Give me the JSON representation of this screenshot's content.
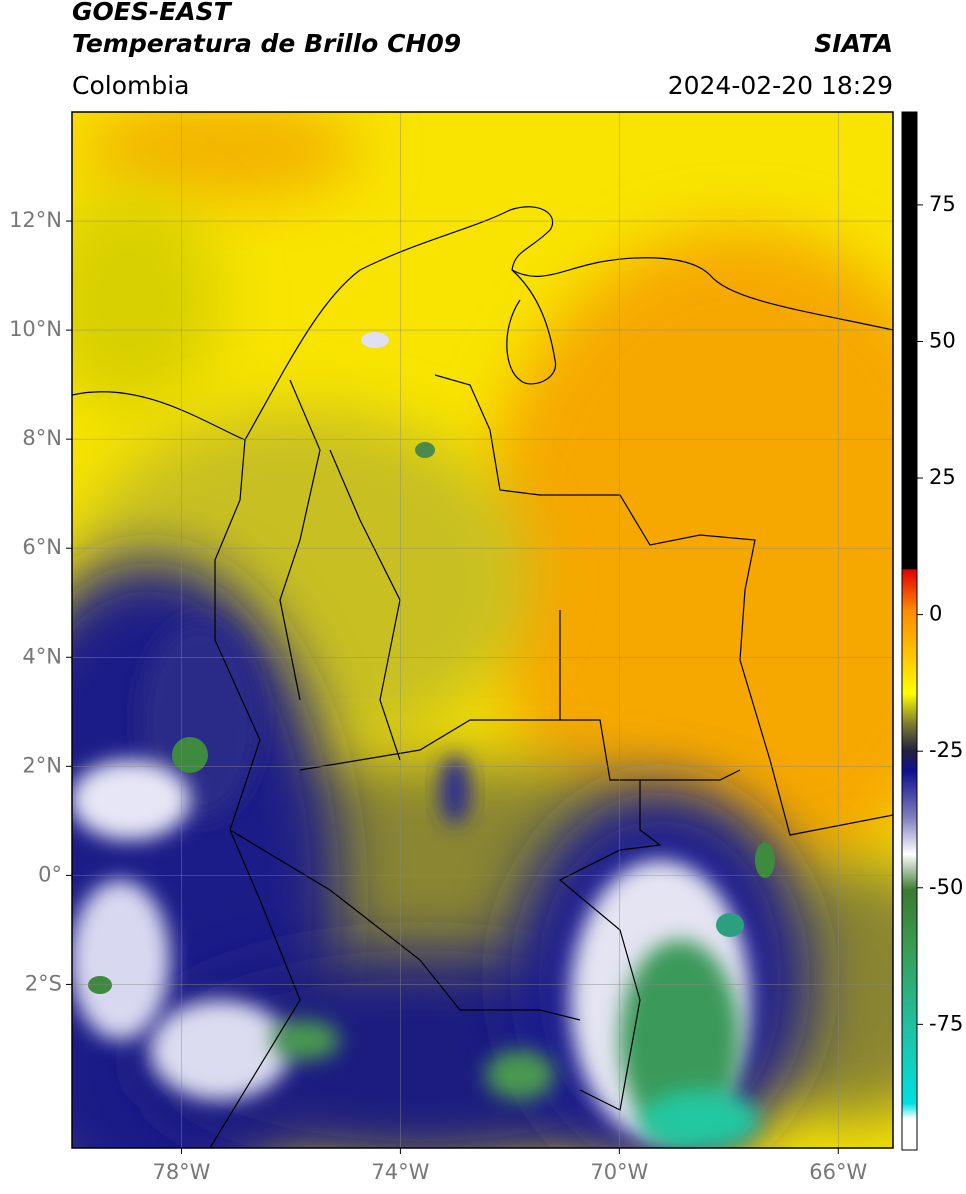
{
  "header": {
    "title": "GOES-EAST",
    "subtitle": "Temperatura de Brillo CH09",
    "source": "SIATA",
    "region": "Colombia",
    "datetime": "2024-02-20 18:29"
  },
  "map": {
    "xlim": [
      -80,
      -65
    ],
    "ylim": [
      -5,
      14
    ],
    "xticks": [
      {
        "value": -78,
        "label": "78°W"
      },
      {
        "value": -74,
        "label": "74°W"
      },
      {
        "value": -70,
        "label": "70°W"
      },
      {
        "value": -66,
        "label": "66°W"
      }
    ],
    "yticks": [
      {
        "value": 12,
        "label": "12°N"
      },
      {
        "value": 10,
        "label": "10°N"
      },
      {
        "value": 8,
        "label": "8°N"
      },
      {
        "value": 6,
        "label": "6°N"
      },
      {
        "value": 4,
        "label": "4°N"
      },
      {
        "value": 2,
        "label": "2°N"
      },
      {
        "value": 0,
        "label": "0°"
      },
      {
        "value": -2,
        "label": "2°S"
      }
    ],
    "grid": true
  },
  "colorbar": {
    "lim": [
      -98,
      92
    ],
    "ticks": [
      75,
      50,
      25,
      0,
      -25,
      -50,
      -75
    ]
  }
}
